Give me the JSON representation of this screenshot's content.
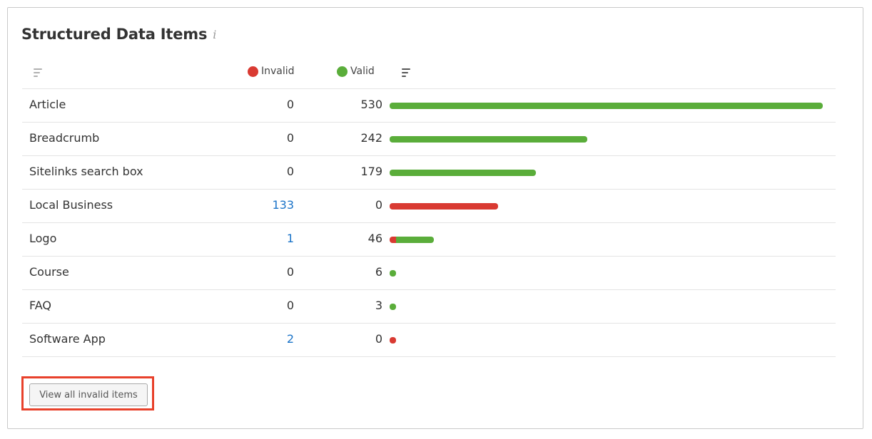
{
  "panel": {
    "title": "Structured Data Items",
    "info_glyph": "i"
  },
  "legend": {
    "invalid_label": "Invalid",
    "valid_label": "Valid",
    "invalid_color": "#d93a32",
    "valid_color": "#5aad3a"
  },
  "rows": [
    {
      "name": "Article",
      "invalid": "0",
      "valid": "530"
    },
    {
      "name": "Breadcrumb",
      "invalid": "0",
      "valid": "242"
    },
    {
      "name": "Sitelinks search box",
      "invalid": "0",
      "valid": "179"
    },
    {
      "name": "Local Business",
      "invalid": "133",
      "valid": "0"
    },
    {
      "name": "Logo",
      "invalid": "1",
      "valid": "46"
    },
    {
      "name": "Course",
      "invalid": "0",
      "valid": "6"
    },
    {
      "name": "FAQ",
      "invalid": "0",
      "valid": "3"
    },
    {
      "name": "Software App",
      "invalid": "2",
      "valid": "0"
    }
  ],
  "actions": {
    "view_invalid_label": "View all invalid items"
  }
}
